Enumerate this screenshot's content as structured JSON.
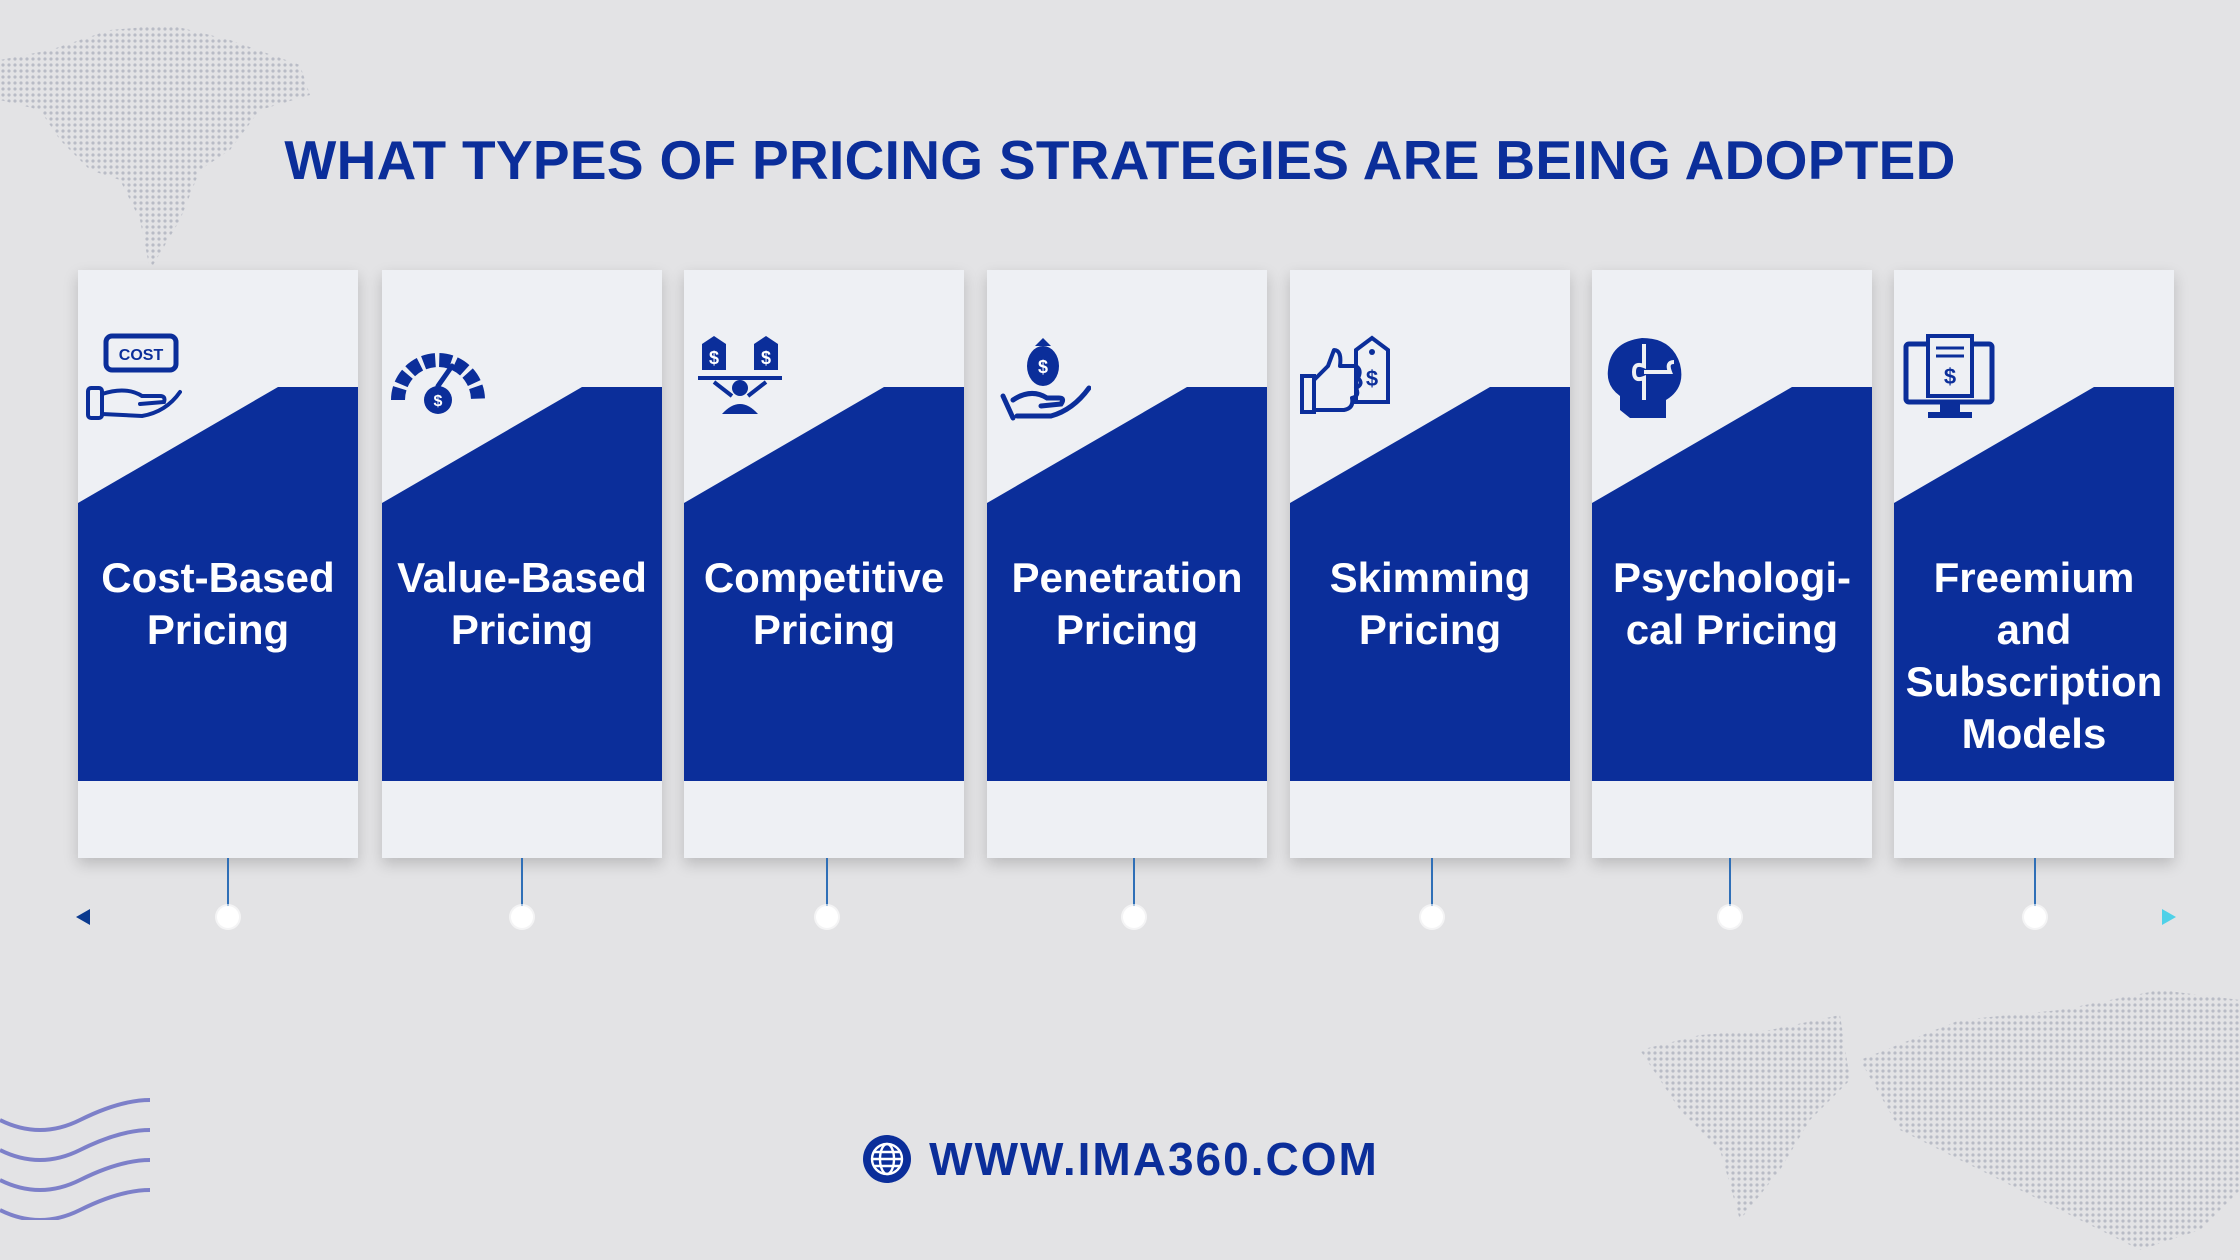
{
  "title": "WHAT TYPES OF PRICING STRATEGIES ARE BEING ADOPTED",
  "colors": {
    "primary": "#0b2e9a",
    "background": "#e3e3e5",
    "card": "#eef0f4",
    "timeline_start": "#0b3a8f",
    "timeline_end": "#4fd1e8"
  },
  "strategies": [
    {
      "label": "Cost-Based Pricing",
      "icon": "cost-hand-icon"
    },
    {
      "label": "Value-Based Pricing",
      "icon": "gauge-dollar-icon"
    },
    {
      "label": "Competitive Pricing",
      "icon": "balance-price-tags-icon"
    },
    {
      "label": "Penetration Pricing",
      "icon": "hand-money-bag-icon"
    },
    {
      "label": "Skimming Pricing",
      "icon": "thumbs-up-price-tag-icon"
    },
    {
      "label": "Psychologi-cal Pricing",
      "icon": "head-puzzle-icon"
    },
    {
      "label": "Freemium and Subscription Models",
      "icon": "monitor-invoice-icon"
    }
  ],
  "footer": {
    "url": "WWW.IMA360.COM",
    "icon": "globe-icon"
  }
}
